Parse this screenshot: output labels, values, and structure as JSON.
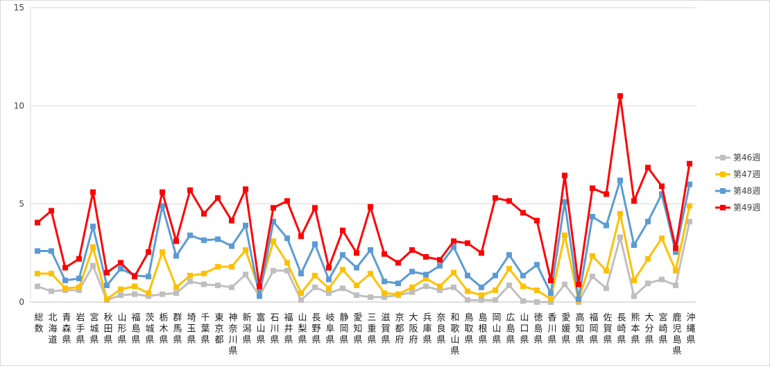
{
  "chart_data": {
    "type": "line",
    "title": "",
    "xlabel": "",
    "ylabel": "",
    "ylim": [
      0,
      15
    ],
    "yticks": [
      0,
      5,
      10,
      15
    ],
    "grid": true,
    "legend_position": "right",
    "categories": [
      "総数",
      "北海道",
      "青森県",
      "岩手県",
      "宮城県",
      "秋田県",
      "山形県",
      "福島県",
      "茨城県",
      "栃木県",
      "群馬県",
      "埼玉県",
      "千葉県",
      "東京都",
      "神奈川県",
      "新潟県",
      "富山県",
      "石川県",
      "福井県",
      "山梨県",
      "長野県",
      "岐阜県",
      "静岡県",
      "愛知県",
      "三重県",
      "滋賀県",
      "京都府",
      "大阪府",
      "兵庫県",
      "奈良県",
      "和歌山県",
      "鳥取県",
      "島根県",
      "岡山県",
      "広島県",
      "山口県",
      "徳島県",
      "香川県",
      "愛媛県",
      "高知県",
      "福岡県",
      "佐賀県",
      "長崎県",
      "熊本県",
      "大分県",
      "宮崎県",
      "鹿児島県",
      "沖縄県"
    ],
    "series": [
      {
        "name": "第46週",
        "color": "#bfbfbf",
        "values": [
          0.8,
          0.55,
          0.6,
          0.6,
          1.85,
          0.1,
          0.35,
          0.4,
          0.3,
          0.4,
          0.45,
          1.05,
          0.9,
          0.85,
          0.75,
          1.4,
          0.3,
          1.6,
          1.6,
          0.1,
          0.75,
          0.45,
          0.7,
          0.35,
          0.25,
          0.25,
          0.35,
          0.5,
          0.8,
          0.6,
          0.75,
          0.1,
          0.1,
          0.1,
          0.85,
          0.05,
          0.0,
          0.0,
          0.9,
          0.0,
          1.3,
          0.7,
          3.3,
          0.3,
          0.95,
          1.15,
          0.85,
          4.1
        ]
      },
      {
        "name": "第47週",
        "color": "#ffc000",
        "values": [
          1.45,
          1.45,
          0.7,
          0.75,
          2.8,
          0.15,
          0.65,
          0.8,
          0.45,
          2.55,
          0.75,
          1.35,
          1.45,
          1.8,
          1.8,
          2.65,
          0.6,
          3.1,
          2.0,
          0.45,
          1.35,
          0.7,
          1.65,
          0.85,
          1.45,
          0.45,
          0.4,
          0.75,
          1.2,
          0.8,
          1.5,
          0.55,
          0.35,
          0.6,
          1.7,
          0.8,
          0.6,
          0.15,
          3.4,
          0.1,
          2.35,
          1.6,
          4.5,
          1.1,
          2.2,
          3.25,
          1.6,
          4.9
        ]
      },
      {
        "name": "第48週",
        "color": "#5b9bd5",
        "values": [
          2.6,
          2.6,
          1.1,
          1.2,
          3.85,
          0.85,
          1.7,
          1.35,
          1.3,
          4.9,
          2.35,
          3.4,
          3.15,
          3.2,
          2.85,
          3.9,
          0.3,
          4.1,
          3.25,
          1.45,
          2.95,
          1.15,
          2.4,
          1.75,
          2.65,
          1.05,
          0.95,
          1.55,
          1.4,
          1.85,
          2.8,
          1.35,
          0.75,
          1.35,
          2.4,
          1.35,
          1.9,
          0.45,
          5.1,
          0.15,
          4.35,
          3.9,
          6.2,
          2.9,
          4.1,
          5.5,
          2.55,
          6.0
        ]
      },
      {
        "name": "第49週",
        "color": "#ff0000",
        "values": [
          4.05,
          4.65,
          1.75,
          2.2,
          5.6,
          1.5,
          2.0,
          1.3,
          2.55,
          5.6,
          3.1,
          5.7,
          4.5,
          5.3,
          4.15,
          5.75,
          0.8,
          4.8,
          5.15,
          3.35,
          4.8,
          1.75,
          3.65,
          2.5,
          4.85,
          2.45,
          2.0,
          2.65,
          2.3,
          2.15,
          3.1,
          3.0,
          2.5,
          5.3,
          5.15,
          4.55,
          4.15,
          1.1,
          6.45,
          0.9,
          5.8,
          5.5,
          10.5,
          5.15,
          6.85,
          5.9,
          2.75,
          7.05
        ]
      }
    ]
  }
}
